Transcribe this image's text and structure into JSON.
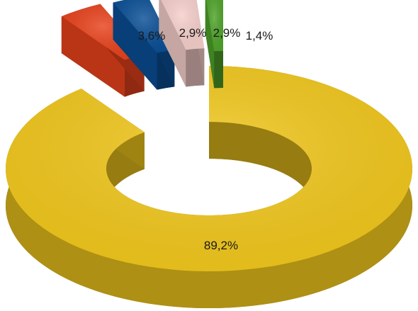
{
  "chart_data": {
    "type": "pie",
    "variant": "3d-doughnut",
    "title": "",
    "categories": [
      "",
      "",
      "",
      "",
      ""
    ],
    "values": [
      89.2,
      3.6,
      2.9,
      2.9,
      1.4
    ],
    "labels": [
      "89,2%",
      "3,6%",
      "2,9%",
      "2,9%",
      "1,4%"
    ],
    "colors": [
      "#f2c81c",
      "#e8421c",
      "#0a4f96",
      "#f6cfcb",
      "#4fa32a"
    ],
    "exploded": [
      false,
      true,
      true,
      true,
      true
    ],
    "legend": "none"
  }
}
